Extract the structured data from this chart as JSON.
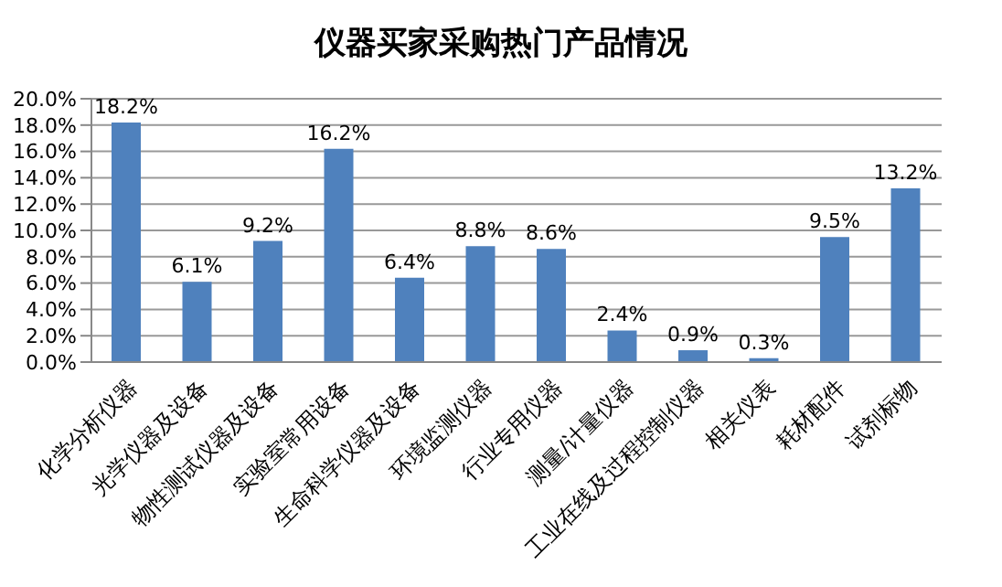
{
  "chart_data": {
    "type": "bar",
    "title": "仪器买家采购热门产品情况",
    "categories": [
      "化学分析仪器",
      "光学仪器及设备",
      "物性测试仪器及设备",
      "实验室常用设备",
      "生命科学仪器及设备",
      "环境监测仪器",
      "行业专用仪器",
      "测量/计量仪器",
      "工业在线及过程控制仪器",
      "相关仪表",
      "耗材配件",
      "试剂标物"
    ],
    "values": [
      18.2,
      6.1,
      9.2,
      16.2,
      6.4,
      8.8,
      8.6,
      2.4,
      0.9,
      0.3,
      9.5,
      13.2
    ],
    "value_labels": [
      "18.2%",
      "6.1%",
      "9.2%",
      "16.2%",
      "6.4%",
      "8.8%",
      "8.6%",
      "2.4%",
      "0.9%",
      "0.3%",
      "9.5%",
      "13.2%"
    ],
    "color": "#4f81bd",
    "ylim": [
      0,
      20
    ],
    "yticks": [
      {
        "value": 0,
        "label": "0.0%"
      },
      {
        "value": 2,
        "label": "2.0%"
      },
      {
        "value": 4,
        "label": "4.0%"
      },
      {
        "value": 6,
        "label": "6.0%"
      },
      {
        "value": 8,
        "label": "8.0%"
      },
      {
        "value": 10,
        "label": "10.0%"
      },
      {
        "value": 12,
        "label": "12.0%"
      },
      {
        "value": 14,
        "label": "14.0%"
      },
      {
        "value": 16,
        "label": "16.0%"
      },
      {
        "value": 18,
        "label": "18.0%"
      },
      {
        "value": 20,
        "label": "20.0%"
      }
    ],
    "grid": "y",
    "legend": false
  }
}
